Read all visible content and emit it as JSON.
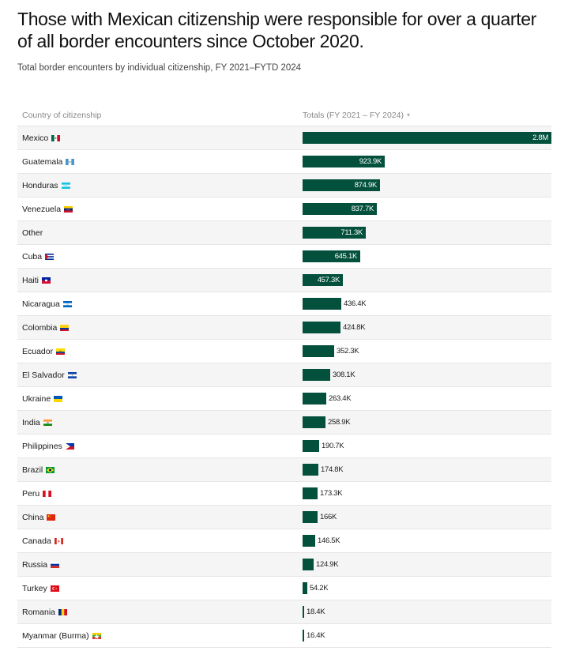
{
  "chart_data": {
    "type": "bar",
    "title": "Those with Mexican citizenship were responsible for over a quarter of all border encounters since October 2020.",
    "subtitle": "Total border encounters by individual citizenship, FY 2021–FYTD 2024",
    "column_headers": {
      "country": "Country of citizenship",
      "totals": "Totals (FY 2021 – FY 2024)"
    },
    "sort_icon": "▾",
    "xlim": [
      0,
      2800000
    ],
    "bar_color": "#03503c",
    "rows": [
      {
        "country": "Mexico",
        "value": 2800000,
        "label": "2.8M",
        "flag": "mexico"
      },
      {
        "country": "Guatemala",
        "value": 923900,
        "label": "923.9K",
        "flag": "guatemala"
      },
      {
        "country": "Honduras",
        "value": 874900,
        "label": "874.9K",
        "flag": "honduras"
      },
      {
        "country": "Venezuela",
        "value": 837700,
        "label": "837.7K",
        "flag": "venezuela"
      },
      {
        "country": "Other",
        "value": 711300,
        "label": "711.3K",
        "flag": ""
      },
      {
        "country": "Cuba",
        "value": 645100,
        "label": "645.1K",
        "flag": "cuba"
      },
      {
        "country": "Haiti",
        "value": 457300,
        "label": "457.3K",
        "flag": "haiti"
      },
      {
        "country": "Nicaragua",
        "value": 436400,
        "label": "436.4K",
        "flag": "nicaragua"
      },
      {
        "country": "Colombia",
        "value": 424800,
        "label": "424.8K",
        "flag": "colombia"
      },
      {
        "country": "Ecuador",
        "value": 352300,
        "label": "352.3K",
        "flag": "ecuador"
      },
      {
        "country": "El Salvador",
        "value": 308100,
        "label": "308.1K",
        "flag": "elsalvador"
      },
      {
        "country": "Ukraine",
        "value": 263400,
        "label": "263.4K",
        "flag": "ukraine"
      },
      {
        "country": "India",
        "value": 258900,
        "label": "258.9K",
        "flag": "india"
      },
      {
        "country": "Philippines",
        "value": 190700,
        "label": "190.7K",
        "flag": "philippines"
      },
      {
        "country": "Brazil",
        "value": 174800,
        "label": "174.8K",
        "flag": "brazil"
      },
      {
        "country": "Peru",
        "value": 173300,
        "label": "173.3K",
        "flag": "peru"
      },
      {
        "country": "China",
        "value": 166000,
        "label": "166K",
        "flag": "china"
      },
      {
        "country": "Canada",
        "value": 146500,
        "label": "146.5K",
        "flag": "canada"
      },
      {
        "country": "Russia",
        "value": 124900,
        "label": "124.9K",
        "flag": "russia"
      },
      {
        "country": "Turkey",
        "value": 54200,
        "label": "54.2K",
        "flag": "turkey"
      },
      {
        "country": "Romania",
        "value": 18400,
        "label": "18.4K",
        "flag": "romania"
      },
      {
        "country": "Myanmar (Burma)",
        "value": 16400,
        "label": "16.4K",
        "flag": "myanmar"
      }
    ]
  }
}
